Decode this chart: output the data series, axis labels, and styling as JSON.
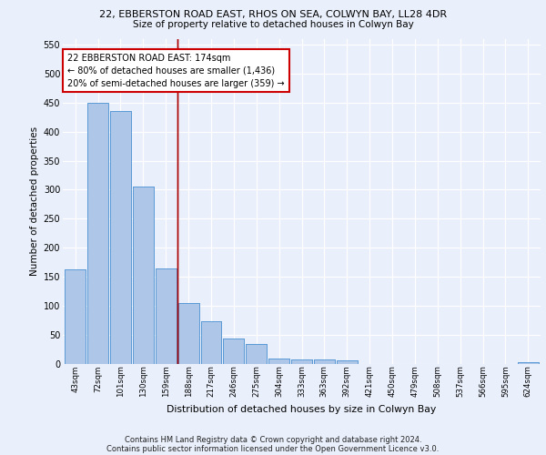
{
  "title1": "22, EBBERSTON ROAD EAST, RHOS ON SEA, COLWYN BAY, LL28 4DR",
  "title2": "Size of property relative to detached houses in Colwyn Bay",
  "xlabel": "Distribution of detached houses by size in Colwyn Bay",
  "ylabel": "Number of detached properties",
  "categories": [
    "43sqm",
    "72sqm",
    "101sqm",
    "130sqm",
    "159sqm",
    "188sqm",
    "217sqm",
    "246sqm",
    "275sqm",
    "304sqm",
    "333sqm",
    "363sqm",
    "392sqm",
    "421sqm",
    "450sqm",
    "479sqm",
    "508sqm",
    "537sqm",
    "566sqm",
    "595sqm",
    "624sqm"
  ],
  "values": [
    163,
    450,
    435,
    305,
    165,
    105,
    73,
    44,
    35,
    9,
    8,
    8,
    6,
    0,
    0,
    0,
    0,
    0,
    0,
    0,
    3
  ],
  "bar_color": "#aec6e8",
  "bar_edge_color": "#5b9bd5",
  "vline_index": 4.5,
  "annotation_text": "22 EBBERSTON ROAD EAST: 174sqm\n← 80% of detached houses are smaller (1,436)\n20% of semi-detached houses are larger (359) →",
  "annotation_box_color": "#ffffff",
  "annotation_box_edge_color": "#cc0000",
  "ylim": [
    0,
    560
  ],
  "yticks": [
    0,
    50,
    100,
    150,
    200,
    250,
    300,
    350,
    400,
    450,
    500,
    550
  ],
  "footnote1": "Contains HM Land Registry data © Crown copyright and database right 2024.",
  "footnote2": "Contains public sector information licensed under the Open Government Licence v3.0.",
  "bg_color": "#eaf0fb",
  "grid_color": "#ffffff",
  "vline_color": "#aa0000"
}
